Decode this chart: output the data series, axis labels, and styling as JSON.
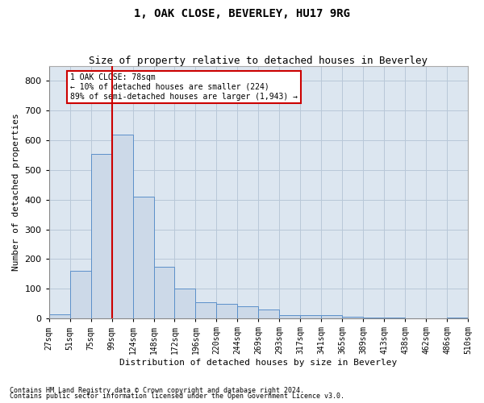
{
  "title": "1, OAK CLOSE, BEVERLEY, HU17 9RG",
  "subtitle": "Size of property relative to detached houses in Beverley",
  "xlabel": "Distribution of detached houses by size in Beverley",
  "ylabel": "Number of detached properties",
  "footnote1": "Contains HM Land Registry data © Crown copyright and database right 2024.",
  "footnote2": "Contains public sector information licensed under the Open Government Licence v3.0.",
  "annotation_title": "1 OAK CLOSE: 78sqm",
  "annotation_line1": "← 10% of detached houses are smaller (224)",
  "annotation_line2": "89% of semi-detached houses are larger (1,943) →",
  "bar_color": "#ccd9e8",
  "bar_edge_color": "#5b8fc9",
  "vline_color": "#cc0000",
  "vline_x_index": 2,
  "annotation_box_color": "#cc0000",
  "tick_labels": [
    "27sqm",
    "51sqm",
    "75sqm",
    "99sqm",
    "124sqm",
    "148sqm",
    "172sqm",
    "196sqm",
    "220sqm",
    "244sqm",
    "269sqm",
    "293sqm",
    "317sqm",
    "341sqm",
    "365sqm",
    "389sqm",
    "413sqm",
    "438sqm",
    "462sqm",
    "486sqm",
    "510sqm"
  ],
  "bar_heights": [
    15,
    160,
    555,
    620,
    410,
    175,
    100,
    55,
    50,
    40,
    30,
    10,
    10,
    10,
    5,
    2,
    2,
    0,
    0,
    2
  ],
  "ylim": [
    0,
    850
  ],
  "yticks": [
    0,
    100,
    200,
    300,
    400,
    500,
    600,
    700,
    800
  ],
  "background_color": "#ffffff",
  "axes_facecolor": "#dce6f0",
  "grid_color": "#b8c8d8",
  "title_fontsize": 10,
  "subtitle_fontsize": 9,
  "ylabel_fontsize": 8,
  "xlabel_fontsize": 8,
  "tick_fontsize": 7,
  "annotation_fontsize": 7,
  "footnote_fontsize": 6
}
